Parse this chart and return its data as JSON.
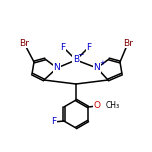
{
  "bg_color": "#ffffff",
  "bond_color": "#000000",
  "atom_colors": {
    "Br": "#800000",
    "F": "#0000cc",
    "N": "#0000cc",
    "B": "#0000cc",
    "O": "#cc0000",
    "C": "#000000"
  },
  "figure_size": [
    1.52,
    1.52
  ],
  "dpi": 100
}
